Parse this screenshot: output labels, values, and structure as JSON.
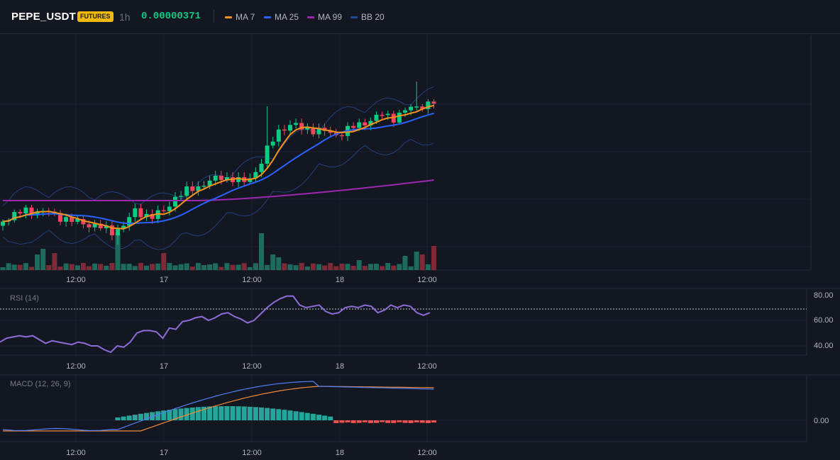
{
  "header": {
    "symbol": "PEPE_USDT",
    "badge": "FUTURES",
    "timeframe": "1h",
    "price": "0.00000371",
    "indicators": [
      {
        "label": "MA 7",
        "color": "#f7931a"
      },
      {
        "label": "MA 25",
        "color": "#2962ff"
      },
      {
        "label": "MA 99",
        "color": "#9c27b0"
      },
      {
        "label": "BB 20",
        "color": "#1e4a9a"
      }
    ]
  },
  "colors": {
    "up": "#0ecb81",
    "down": "#f6465d",
    "rsi": "#8e6cd8",
    "macd": "#4f7ef5",
    "signal": "#f28b3a",
    "hist_up": "#26a69a",
    "hist_down": "#ef5350"
  },
  "x_axis": [
    "12:00",
    "17",
    "12:00",
    "18",
    "12:00"
  ],
  "rsi": {
    "label": "RSI (14)",
    "ticks": [
      "80.00",
      "60.00",
      "40.00"
    ],
    "values": [
      43,
      46,
      47,
      48,
      47,
      48,
      45,
      42,
      44,
      43,
      42,
      41,
      43,
      42,
      40,
      40,
      37,
      35,
      40,
      39,
      43,
      50,
      52,
      52,
      51,
      46,
      54,
      53,
      59,
      60,
      62,
      63,
      60,
      62,
      65,
      66,
      63,
      61,
      58,
      60,
      65,
      70,
      74,
      77,
      79,
      79,
      72,
      70,
      71,
      72,
      67,
      65,
      66,
      70,
      71,
      70,
      72,
      71,
      66,
      68,
      72,
      70,
      72,
      71,
      66,
      64,
      66
    ]
  },
  "macd": {
    "label": "MACD (12, 26, 9)",
    "ticks": [
      "0.00"
    ]
  }
}
